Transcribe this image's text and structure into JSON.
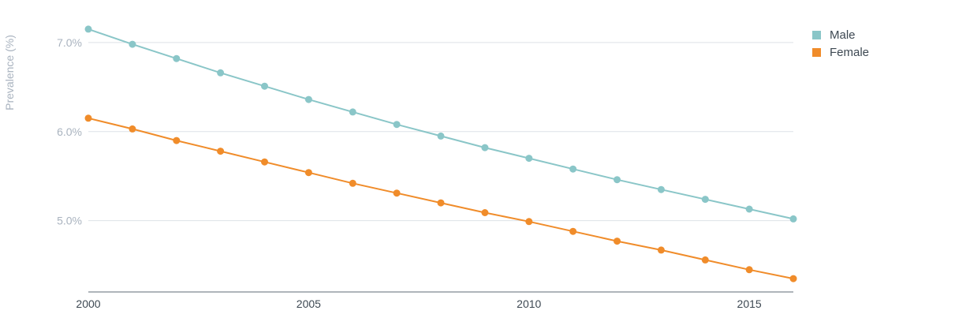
{
  "chart_data": {
    "type": "line",
    "title": "",
    "xlabel": "",
    "ylabel": "Prevalence (%)",
    "x": [
      2000,
      2001,
      2002,
      2003,
      2004,
      2005,
      2006,
      2007,
      2008,
      2009,
      2010,
      2011,
      2012,
      2013,
      2014,
      2015,
      2016
    ],
    "xlim": [
      2000,
      2016
    ],
    "ylim": [
      4.2,
      7.3
    ],
    "x_ticks": [
      2000,
      2005,
      2010,
      2015
    ],
    "y_ticks": [
      5.0,
      6.0,
      7.0
    ],
    "y_tick_labels": [
      "5.0%",
      "6.0%",
      "7.0%"
    ],
    "grid": "horizontal",
    "legend_position": "top-right",
    "series": [
      {
        "name": "Male",
        "color": "#8ac6c8",
        "values": [
          7.15,
          6.98,
          6.82,
          6.66,
          6.51,
          6.36,
          6.22,
          6.08,
          5.95,
          5.82,
          5.7,
          5.58,
          5.46,
          5.35,
          5.24,
          5.13,
          5.02
        ]
      },
      {
        "name": "Female",
        "color": "#f08c2a",
        "values": [
          6.15,
          6.03,
          5.9,
          5.78,
          5.66,
          5.54,
          5.42,
          5.31,
          5.2,
          5.09,
          4.99,
          4.88,
          4.77,
          4.67,
          4.56,
          4.45,
          4.35
        ]
      }
    ]
  }
}
